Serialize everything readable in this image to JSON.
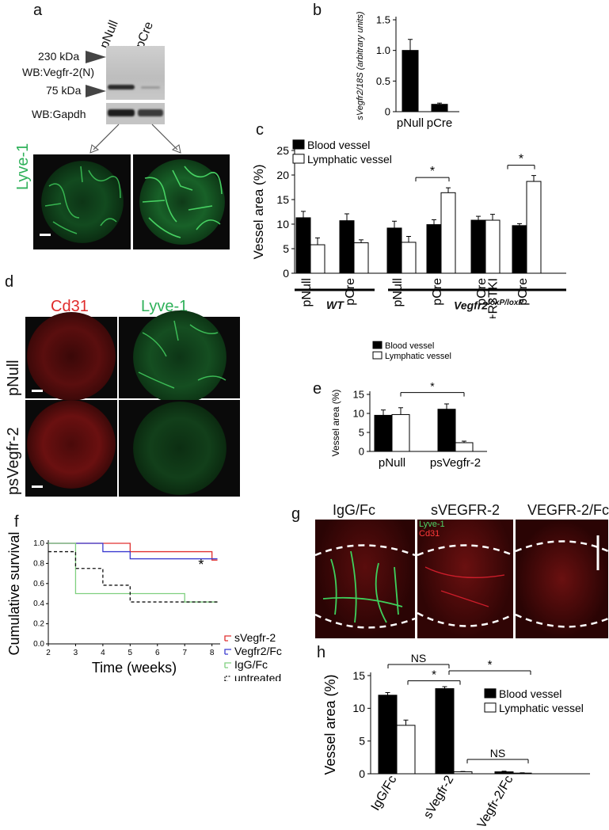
{
  "panels": {
    "a": {
      "label": "a",
      "lanes": [
        "pNull",
        "pCre"
      ],
      "markers": [
        "230 kDa",
        "75 kDa"
      ],
      "wb_vegfr": "WB:Vegfr-2(N)",
      "wb_gapdh": "WB:Gapdh",
      "stain": "Lyve-1"
    },
    "b": {
      "label": "b"
    },
    "c": {
      "label": "c",
      "group1": "WT",
      "group2_main": "Vegfr2",
      "group2_sup": "loxP/loxP"
    },
    "d": {
      "label": "d",
      "col1": "Cd31",
      "col2": "Lyve-1",
      "row1": "pNull",
      "row2": "psVegfr-2"
    },
    "e": {
      "label": "e"
    },
    "f": {
      "label": "f"
    },
    "g": {
      "label": "g",
      "titles": [
        "IgG/Fc",
        "sVEGFR-2",
        "VEGFR-2/Fc"
      ],
      "stain1": "Lyve-1",
      "stain2": "Cd31"
    },
    "h": {
      "label": "h"
    }
  },
  "chart_data": [
    {
      "id": "b",
      "type": "bar",
      "categories": [
        "pNull",
        "pCre"
      ],
      "values": [
        1.0,
        0.12
      ],
      "errors": [
        0.18,
        0.02
      ],
      "ylabel": "sVegfr2/18S (arbitrary units)",
      "ylim": [
        0,
        1.5
      ],
      "yticks": [
        "0",
        "0.5",
        "1.0",
        "1.5"
      ]
    },
    {
      "id": "c",
      "type": "bar",
      "categories": [
        "pNull",
        "pCre",
        "pNull",
        "pCre",
        "pCre\n+R3TKI",
        "pCre"
      ],
      "series": [
        {
          "name": "Blood vessel",
          "color": "#000000",
          "values": [
            11.3,
            10.7,
            9.2,
            9.9,
            10.8,
            9.7
          ],
          "errors": [
            1.3,
            1.4,
            1.4,
            1.0,
            0.8,
            0.4
          ]
        },
        {
          "name": "Lymphatic vessel",
          "color": "#ffffff",
          "values": [
            5.8,
            6.2,
            6.3,
            16.4,
            10.8,
            18.7
          ],
          "errors": [
            1.4,
            0.6,
            1.2,
            1.0,
            1.2,
            1.2
          ]
        }
      ],
      "ylabel": "Vessel area (%)",
      "ylim": [
        0,
        25
      ],
      "yticks": [
        "0",
        "5",
        "10",
        "15",
        "20",
        "25"
      ],
      "significance": [
        "*",
        "*"
      ]
    },
    {
      "id": "e",
      "type": "bar",
      "categories": [
        "pNull",
        "psVegfr-2"
      ],
      "series": [
        {
          "name": "Blood vessel",
          "color": "#000000",
          "values": [
            9.5,
            11.1
          ],
          "errors": [
            1.4,
            1.4
          ]
        },
        {
          "name": "Lymphatic vessel",
          "color": "#ffffff",
          "values": [
            9.7,
            2.3
          ],
          "errors": [
            1.8,
            0.4
          ]
        }
      ],
      "ylabel": "Vessel area (%)",
      "ylim": [
        0,
        15
      ],
      "yticks": [
        "0",
        "5",
        "10",
        "15"
      ],
      "significance": [
        "*"
      ]
    },
    {
      "id": "f",
      "type": "line",
      "step": true,
      "xlabel": "Time (weeks)",
      "ylabel": "Cumulative survival",
      "xlim": [
        2,
        8.3
      ],
      "ylim": [
        0,
        1.0
      ],
      "xticks": [
        "2",
        "3",
        "4",
        "5",
        "6",
        "7",
        "8"
      ],
      "yticks": [
        "0.0",
        "0.2",
        "0.4",
        "0.6",
        "0.8",
        "1.0"
      ],
      "series": [
        {
          "name": "sVegfr-2",
          "color": "#e03030",
          "dash": "none",
          "x": [
            2,
            5,
            8,
            8.2
          ],
          "y": [
            1.0,
            0.917,
            0.833,
            0.833
          ]
        },
        {
          "name": "Vegfr2/Fc",
          "color": "#3a3ad0",
          "dash": "none",
          "x": [
            2,
            4,
            5,
            8.2
          ],
          "y": [
            1.0,
            0.917,
            0.846,
            0.846
          ]
        },
        {
          "name": "IgG/Fc",
          "color": "#7fd07f",
          "dash": "none",
          "x": [
            2,
            3,
            7,
            8.2
          ],
          "y": [
            1.0,
            0.5,
            0.417,
            0.417
          ]
        },
        {
          "name": "untreated",
          "color": "#111111",
          "dash": "4,3",
          "x": [
            2,
            3,
            4,
            5,
            8,
            8.2
          ],
          "y": [
            0.917,
            0.75,
            0.583,
            0.417,
            0.417,
            0.417
          ]
        }
      ],
      "annotation": "*"
    },
    {
      "id": "h",
      "type": "bar",
      "categories": [
        "IgG/Fc",
        "sVegfr-2",
        "Vegfr-2/Fc"
      ],
      "series": [
        {
          "name": "Blood vessel",
          "color": "#000000",
          "values": [
            12.0,
            13.0,
            0.3
          ],
          "errors": [
            0.4,
            0.3,
            0.1
          ]
        },
        {
          "name": "Lymphatic vessel",
          "color": "#ffffff",
          "values": [
            7.4,
            0.3,
            0.1
          ],
          "errors": [
            0.8,
            0.05,
            0.05
          ]
        }
      ],
      "ylabel": "Vessel area (%)",
      "ylim": [
        0,
        15
      ],
      "yticks": [
        "0",
        "5",
        "10",
        "15"
      ],
      "significance": [
        "NS",
        "*",
        "*",
        "NS"
      ]
    }
  ]
}
